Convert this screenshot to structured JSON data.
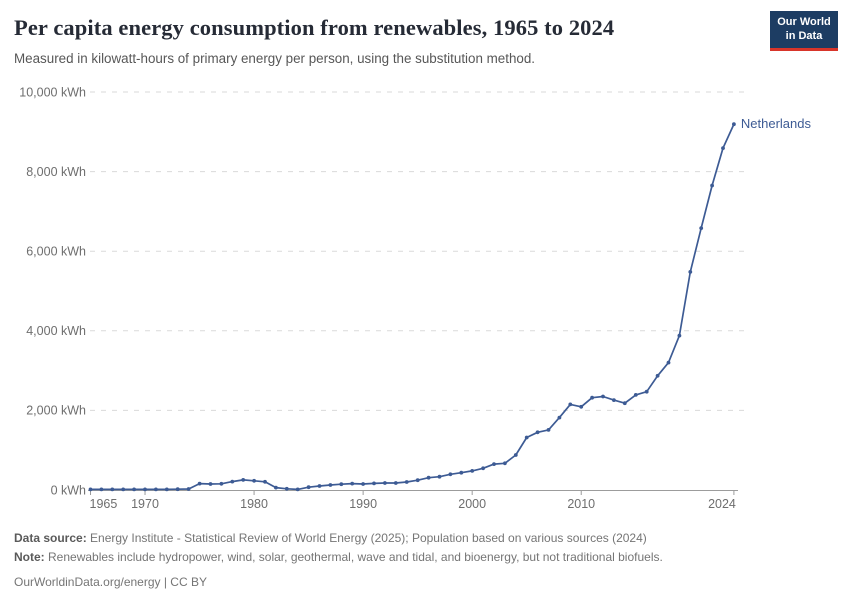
{
  "header": {
    "title": "Per capita energy consumption from renewables, 1965 to 2024",
    "subtitle": "Measured in kilowatt-hours of primary energy per person, using the substitution method."
  },
  "logo": {
    "line1": "Our World",
    "line2": "in Data"
  },
  "colors": {
    "line": "#3d5b94",
    "entity_label": "#3d5b94",
    "logo_bg": "#1d3d63",
    "logo_red": "#d8352a",
    "gridline": "#dadada",
    "axis": "#9c9c9c",
    "tick_text": "#6e6e6e"
  },
  "chart_data": {
    "type": "line",
    "title": "Per capita energy consumption from renewables, 1965 to 2024",
    "xlabel": "",
    "ylabel": "kWh",
    "xlim": [
      1965,
      2024
    ],
    "ylim": [
      0,
      10000
    ],
    "grid": "horizontal-dashed",
    "legend": "end-of-line-label",
    "x": [
      1965,
      1966,
      1967,
      1968,
      1969,
      1970,
      1971,
      1972,
      1973,
      1974,
      1975,
      1976,
      1977,
      1978,
      1979,
      1980,
      1981,
      1982,
      1983,
      1984,
      1985,
      1986,
      1987,
      1988,
      1989,
      1990,
      1991,
      1992,
      1993,
      1994,
      1995,
      1996,
      1997,
      1998,
      1999,
      2000,
      2001,
      2002,
      2003,
      2004,
      2005,
      2006,
      2007,
      2008,
      2009,
      2010,
      2011,
      2012,
      2013,
      2014,
      2015,
      2016,
      2017,
      2018,
      2019,
      2020,
      2021,
      2022,
      2023,
      2024
    ],
    "series": [
      {
        "name": "Netherlands",
        "color": "#3d5b94",
        "values": [
          15,
          15,
          15,
          15,
          15,
          15,
          15,
          15,
          20,
          25,
          160,
          150,
          155,
          210,
          255,
          230,
          205,
          60,
          30,
          15,
          70,
          100,
          125,
          145,
          160,
          150,
          165,
          175,
          175,
          200,
          245,
          310,
          335,
          395,
          435,
          480,
          545,
          650,
          670,
          880,
          1320,
          1450,
          1510,
          1820,
          2150,
          2090,
          2320,
          2350,
          2260,
          2180,
          2390,
          2470,
          2870,
          3200,
          3880,
          5480,
          6580,
          7650,
          8590,
          9190
        ]
      }
    ],
    "yticks": [
      {
        "value": 0,
        "label": "0 kWh"
      },
      {
        "value": 2000,
        "label": "2,000 kWh"
      },
      {
        "value": 4000,
        "label": "4,000 kWh"
      },
      {
        "value": 6000,
        "label": "6,000 kWh"
      },
      {
        "value": 8000,
        "label": "8,000 kWh"
      },
      {
        "value": 10000,
        "label": "10,000 kWh"
      }
    ],
    "xticks": [
      {
        "value": 1965,
        "label": "1965",
        "align": "start"
      },
      {
        "value": 1970,
        "label": "1970",
        "align": "middle"
      },
      {
        "value": 1980,
        "label": "1980",
        "align": "middle"
      },
      {
        "value": 1990,
        "label": "1990",
        "align": "middle"
      },
      {
        "value": 2000,
        "label": "2000",
        "align": "middle"
      },
      {
        "value": 2010,
        "label": "2010",
        "align": "middle"
      },
      {
        "value": 2024,
        "label": "2024",
        "align": "end"
      }
    ]
  },
  "footer": {
    "source_label": "Data source:",
    "source_text": " Energy Institute - Statistical Review of World Energy (2025); Population based on various sources (2024)",
    "note_label": "Note:",
    "note_text": " Renewables include hydropower, wind, solar, geothermal, wave and tidal, and bioenergy, but not traditional biofuels.",
    "url_text": "OurWorldinData.org/energy | CC BY"
  }
}
